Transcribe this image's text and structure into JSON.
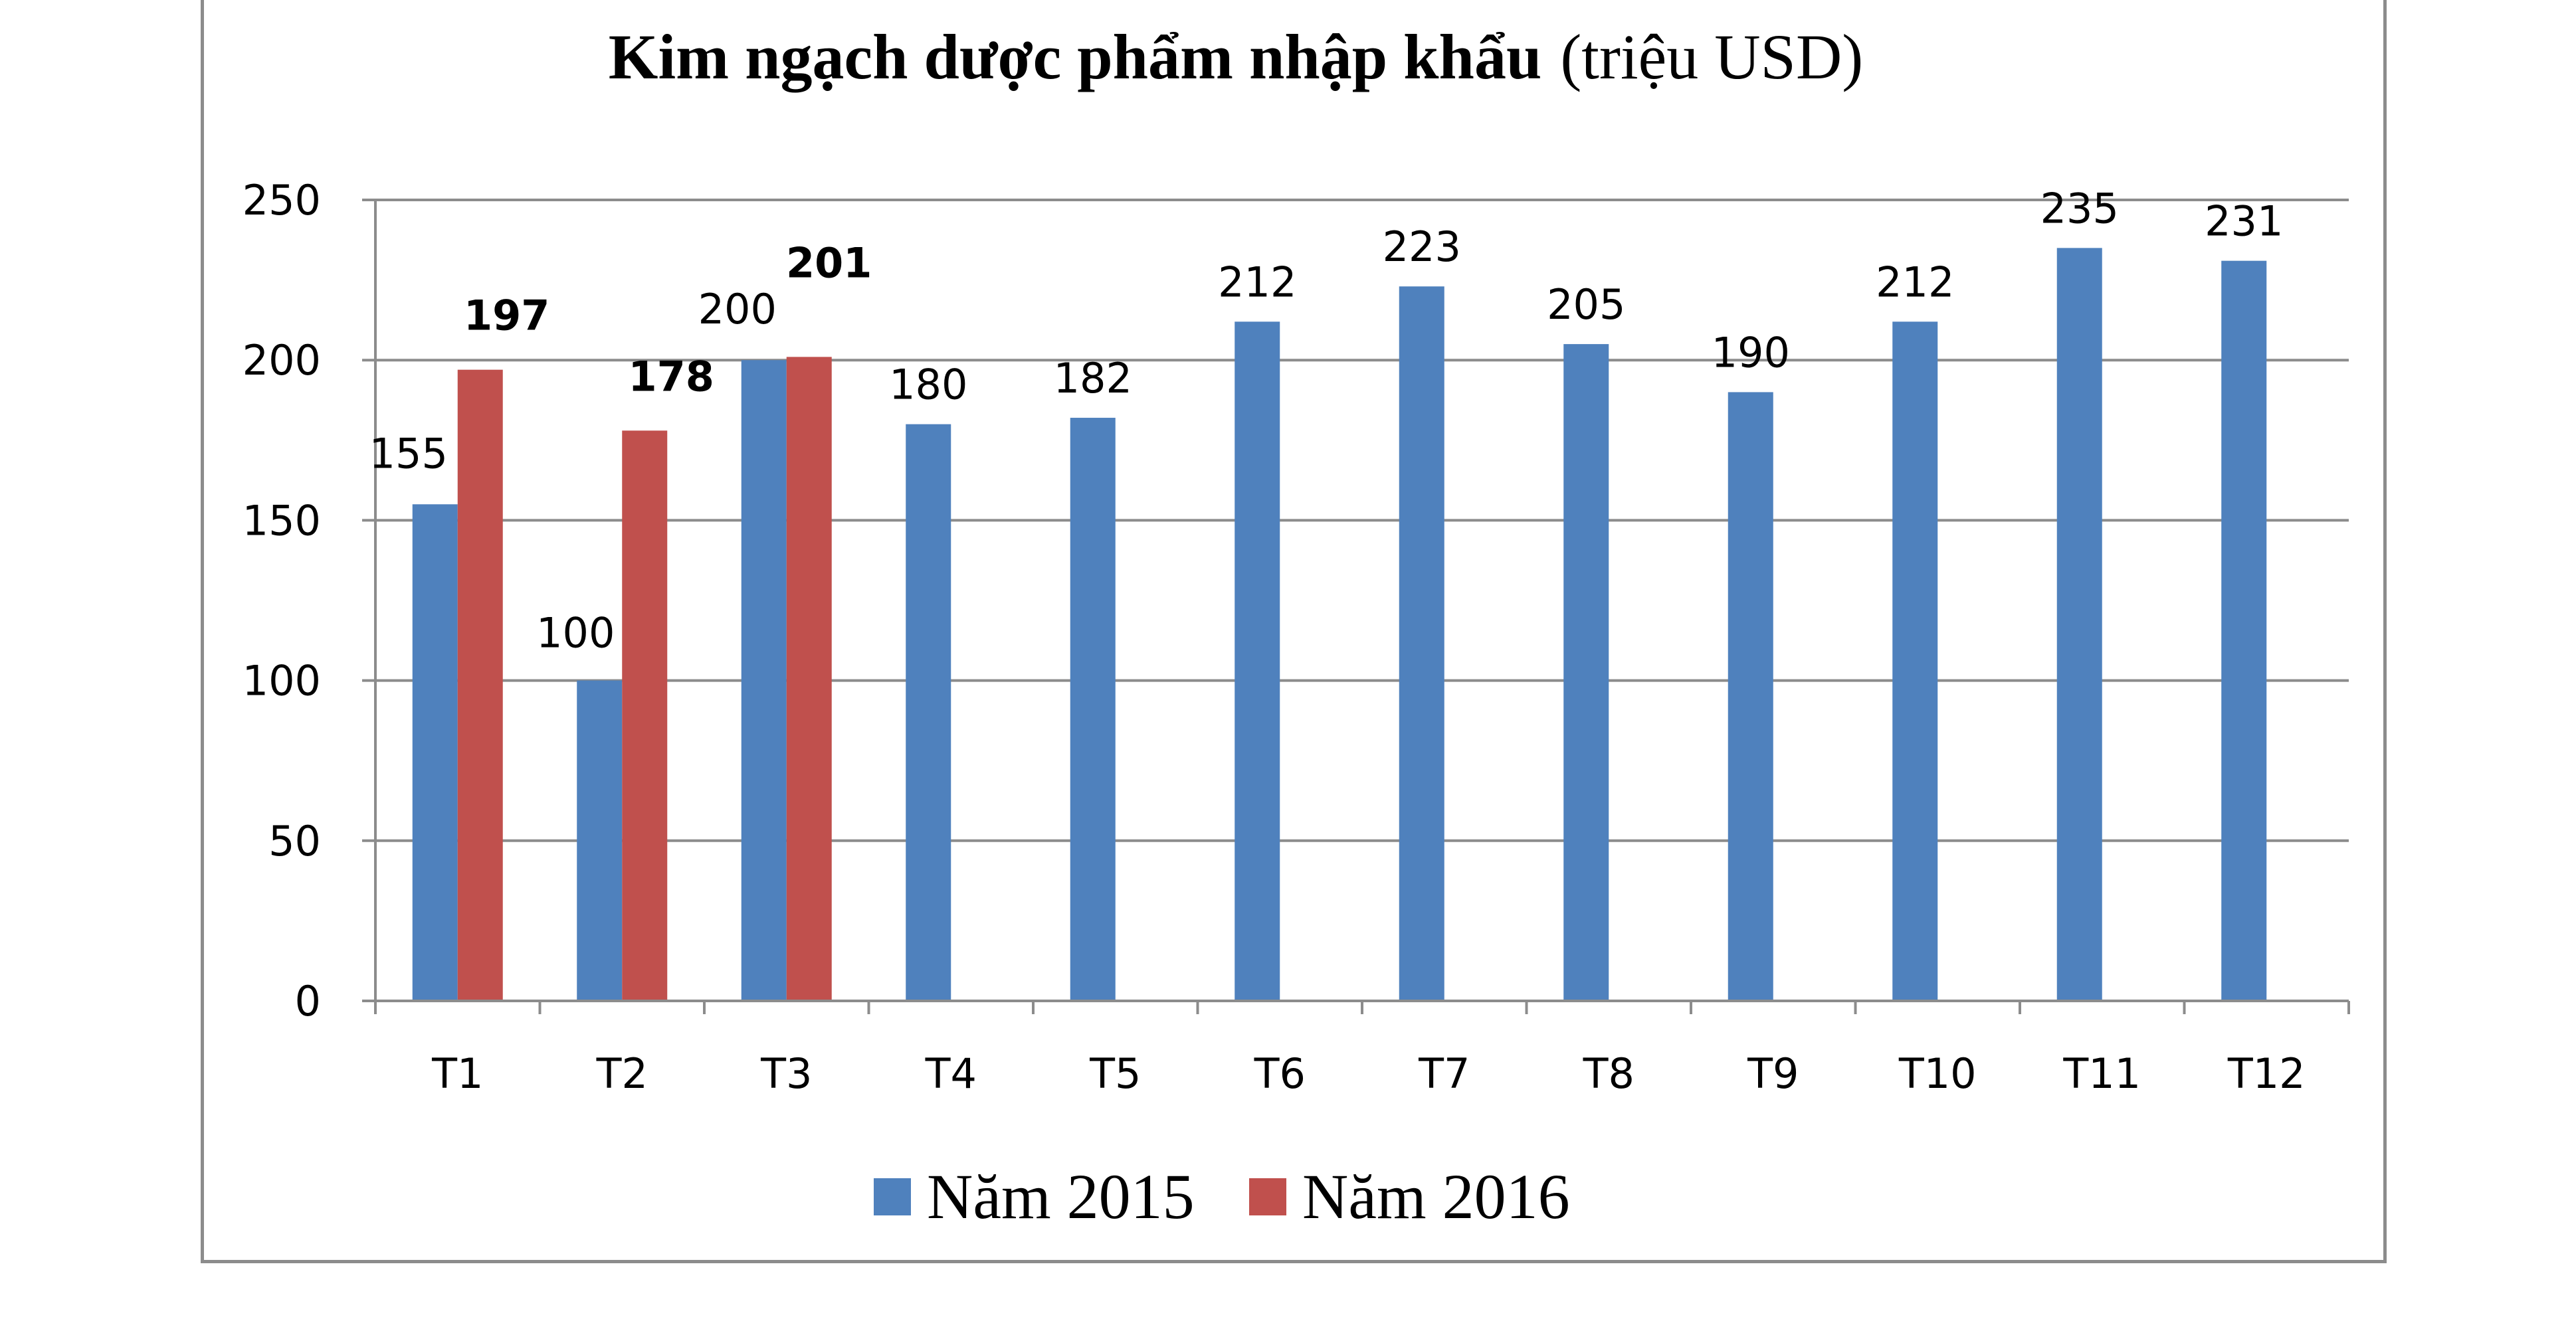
{
  "chart_data": {
    "type": "bar",
    "title": "Kim ngạch dược phẩm nhập khẩu",
    "title_unit": "(triệu USD)",
    "categories": [
      "T1",
      "T2",
      "T3",
      "T4",
      "T5",
      "T6",
      "T7",
      "T8",
      "T9",
      "T10",
      "T11",
      "T12"
    ],
    "series": [
      {
        "name": "Năm 2015",
        "color": "#4f81bd",
        "values": [
          155,
          100,
          200,
          180,
          182,
          212,
          223,
          205,
          190,
          212,
          235,
          231
        ]
      },
      {
        "name": "Năm 2016",
        "color": "#c0504d",
        "values": [
          197,
          178,
          201,
          null,
          null,
          null,
          null,
          null,
          null,
          null,
          null,
          null
        ]
      }
    ],
    "ylim": [
      0,
      250
    ],
    "yticks": [
      0,
      50,
      100,
      150,
      200,
      250
    ],
    "grid": true,
    "legend": "bottom"
  }
}
